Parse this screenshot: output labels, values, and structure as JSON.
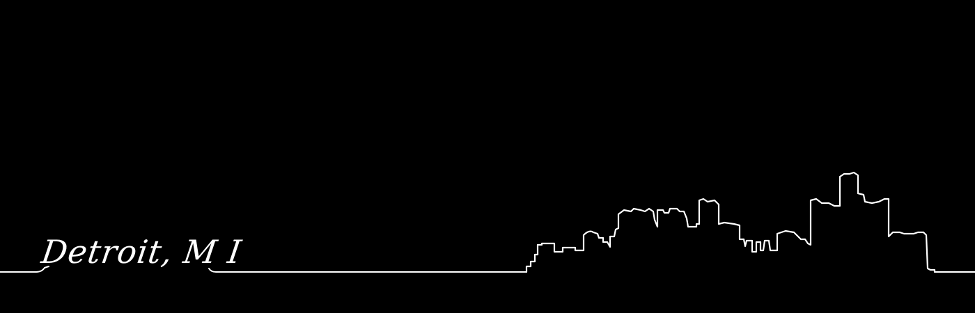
{
  "caption": "Detroit, M I",
  "colors": {
    "background": "#000000",
    "line": "#ffffff"
  },
  "drawing": "detroit-skyline-outline"
}
